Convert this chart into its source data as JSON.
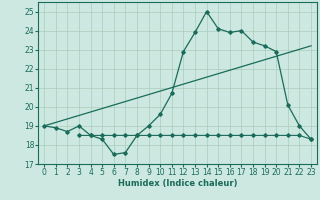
{
  "xlabel": "Humidex (Indice chaleur)",
  "xlim": [
    -0.5,
    23.5
  ],
  "ylim": [
    17,
    25.5
  ],
  "yticks": [
    17,
    18,
    19,
    20,
    21,
    22,
    23,
    24,
    25
  ],
  "xticks": [
    0,
    1,
    2,
    3,
    4,
    5,
    6,
    7,
    8,
    9,
    10,
    11,
    12,
    13,
    14,
    15,
    16,
    17,
    18,
    19,
    20,
    21,
    22,
    23
  ],
  "bg_color": "#cce8e0",
  "line_color": "#1a6b5a",
  "grid_color": "#aaccbb",
  "curve1_x": [
    0,
    1,
    2,
    3,
    4,
    5,
    6,
    7,
    8,
    9,
    10,
    11,
    12,
    13,
    14,
    15,
    16,
    17,
    18,
    19,
    20,
    21,
    22,
    23
  ],
  "curve1_y": [
    19.0,
    18.9,
    18.7,
    19.0,
    18.5,
    18.3,
    17.5,
    17.6,
    18.5,
    19.0,
    19.6,
    20.7,
    22.9,
    23.9,
    25.0,
    24.1,
    23.9,
    24.0,
    23.4,
    23.2,
    22.9,
    20.1,
    19.0,
    18.3
  ],
  "curve2_x": [
    0,
    23
  ],
  "curve2_y": [
    19.0,
    23.2
  ],
  "curve3_x": [
    3,
    4,
    5,
    6,
    7,
    8,
    9,
    10,
    11,
    12,
    13,
    14,
    15,
    16,
    17,
    18,
    19,
    20,
    21,
    22,
    23
  ],
  "curve3_y": [
    18.5,
    18.5,
    18.5,
    18.5,
    18.5,
    18.5,
    18.5,
    18.5,
    18.5,
    18.5,
    18.5,
    18.5,
    18.5,
    18.5,
    18.5,
    18.5,
    18.5,
    18.5,
    18.5,
    18.5,
    18.3
  ]
}
